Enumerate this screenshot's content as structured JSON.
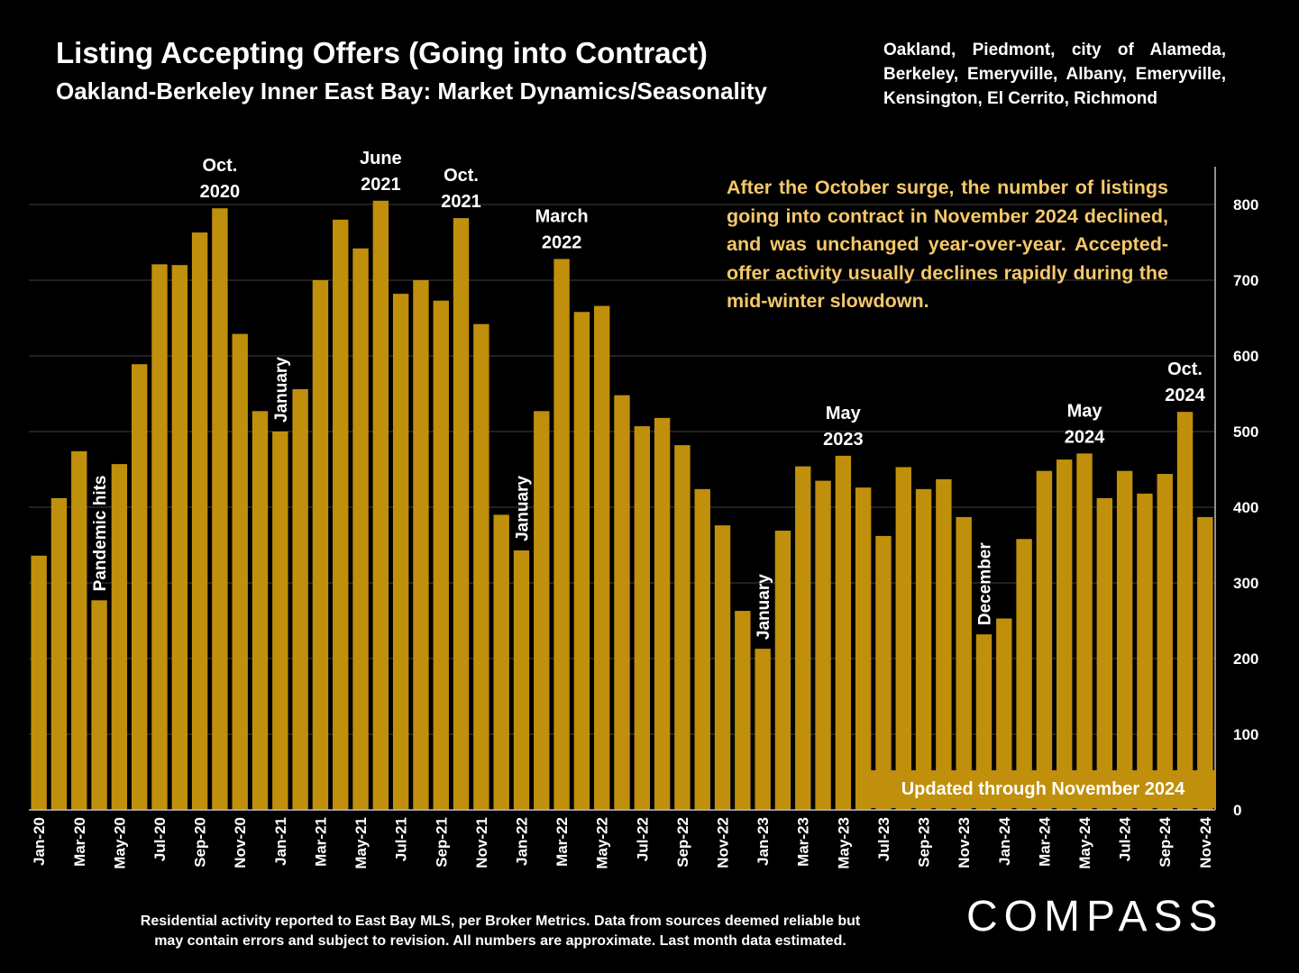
{
  "title": "Listing Accepting Offers (Going into Contract)",
  "subtitle": "Oakland-Berkeley Inner East Bay: Market Dynamics/Seasonality",
  "cities": "Oakland, Piedmont, city of Alameda, Berkeley, Emeryville, Albany, Emeryville, Kensington, El Cerrito, Richmond",
  "note": "After the October surge, the number of listings going into contract in November 2024 declined, and was unchanged year-over-year. Accepted-offer activity usually declines rapidly during the mid-winter slowdown.",
  "updated_label": "Updated through November 2024",
  "footer_line1": "Residential activity reported to East Bay MLS, per Broker Metrics. Data from sources deemed reliable but",
  "footer_line2": "may contain errors and subject to revision. All numbers are approximate. Last month data estimated.",
  "logo_text": "COMPASS",
  "colors": {
    "bar": "#c08f0c",
    "background": "#000000",
    "note_text": "#f5c869",
    "grid": "#404040"
  },
  "chart_data": {
    "type": "bar",
    "categories": [
      "Jan-20",
      "Feb-20",
      "Mar-20",
      "Apr-20",
      "May-20",
      "Jun-20",
      "Jul-20",
      "Aug-20",
      "Sep-20",
      "Oct-20",
      "Nov-20",
      "Dec-20",
      "Jan-21",
      "Feb-21",
      "Mar-21",
      "Apr-21",
      "May-21",
      "Jun-21",
      "Jul-21",
      "Aug-21",
      "Sep-21",
      "Oct-21",
      "Nov-21",
      "Dec-21",
      "Jan-22",
      "Feb-22",
      "Mar-22",
      "Apr-22",
      "May-22",
      "Jun-22",
      "Jul-22",
      "Aug-22",
      "Sep-22",
      "Oct-22",
      "Nov-22",
      "Dec-22",
      "Jan-23",
      "Feb-23",
      "Mar-23",
      "Apr-23",
      "May-23",
      "Jun-23",
      "Jul-23",
      "Aug-23",
      "Sep-23",
      "Oct-23",
      "Nov-23",
      "Dec-23",
      "Jan-24",
      "Feb-24",
      "Mar-24",
      "Apr-24",
      "May-24",
      "Jun-24",
      "Jul-24",
      "Aug-24",
      "Sep-24",
      "Oct-24",
      "Nov-24"
    ],
    "x_tick_labels": [
      "Jan-20",
      "Mar-20",
      "May-20",
      "Jul-20",
      "Sep-20",
      "Nov-20",
      "Jan-21",
      "Mar-21",
      "May-21",
      "Jul-21",
      "Sep-21",
      "Nov-21",
      "Jan-22",
      "Mar-22",
      "May-22",
      "Jul-22",
      "Sep-22",
      "Nov-22",
      "Jan-23",
      "Mar-23",
      "May-23",
      "Jul-23",
      "Sep-23",
      "Nov-23",
      "Jan-24",
      "Mar-24",
      "May-24",
      "Jul-24",
      "Sep-24",
      "Nov-24"
    ],
    "values": [
      336,
      412,
      474,
      277,
      457,
      589,
      721,
      720,
      763,
      795,
      629,
      527,
      500,
      556,
      700,
      780,
      742,
      805,
      682,
      700,
      673,
      782,
      642,
      390,
      343,
      527,
      728,
      658,
      666,
      548,
      507,
      518,
      482,
      424,
      376,
      263,
      213,
      369,
      454,
      435,
      468,
      426,
      362,
      453,
      424,
      437,
      387,
      232,
      253,
      358,
      448,
      463,
      471,
      412,
      448,
      418,
      444,
      526,
      387
    ],
    "ylim": [
      0,
      850
    ],
    "yticks": [
      0,
      100,
      200,
      300,
      400,
      500,
      600,
      700,
      800
    ],
    "grid": true,
    "y_axis_side": "right",
    "annotations": [
      {
        "index": 3,
        "text": "Pandemic hits",
        "rotated": true
      },
      {
        "index": 9,
        "text": "Oct.|2020",
        "rotated": false
      },
      {
        "index": 12,
        "text": "January",
        "rotated": true
      },
      {
        "index": 17,
        "text": "June|2021",
        "rotated": false
      },
      {
        "index": 21,
        "text": "Oct.|2021",
        "rotated": false
      },
      {
        "index": 24,
        "text": "January",
        "rotated": true
      },
      {
        "index": 26,
        "text": "March|2022",
        "rotated": false
      },
      {
        "index": 36,
        "text": "January",
        "rotated": true
      },
      {
        "index": 40,
        "text": "May|2023",
        "rotated": false
      },
      {
        "index": 47,
        "text": "December",
        "rotated": true
      },
      {
        "index": 52,
        "text": "May|2024",
        "rotated": false
      },
      {
        "index": 57,
        "text": "Oct.|2024",
        "rotated": false
      }
    ]
  }
}
